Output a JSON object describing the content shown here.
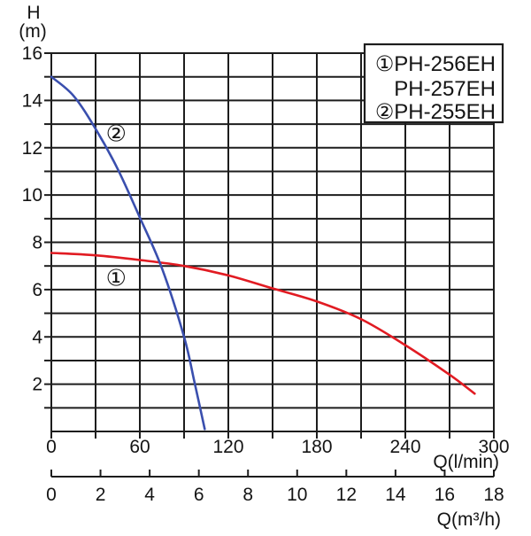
{
  "chart_data": {
    "type": "line",
    "grid": "on",
    "legend_position": "top-right",
    "y_axis": {
      "title_line1": "H",
      "title_line2": "(m)",
      "min": 0,
      "max": 16,
      "grid_step": 1,
      "tick_step": 1,
      "labeled_ticks": [
        2,
        4,
        6,
        8,
        10,
        12,
        14,
        16
      ]
    },
    "x_axis": {
      "label": "Q(l/min)",
      "min": 0,
      "max": 300,
      "grid_step": 30,
      "tick_step": 30,
      "labeled_ticks": [
        0,
        60,
        120,
        180,
        240,
        300
      ]
    },
    "x_axis_secondary": {
      "label": "Q(m³/h)",
      "min": 0,
      "max": 18,
      "tick_step": 2,
      "labeled_ticks": [
        0,
        2,
        4,
        6,
        8,
        10,
        12,
        14,
        16,
        18
      ]
    },
    "series": [
      {
        "name": "PH-256EH / PH-257EH",
        "curve_marker": "①",
        "color": "#e11b22",
        "points": [
          [
            0,
            7.55
          ],
          [
            30,
            7.45
          ],
          [
            60,
            7.25
          ],
          [
            90,
            7.0
          ],
          [
            120,
            6.6
          ],
          [
            150,
            6.05
          ],
          [
            180,
            5.5
          ],
          [
            210,
            4.75
          ],
          [
            240,
            3.65
          ],
          [
            270,
            2.4
          ],
          [
            287,
            1.6
          ]
        ]
      },
      {
        "name": "PH-255EH",
        "curve_marker": "②",
        "color": "#3a4fae",
        "points": [
          [
            0,
            15.0
          ],
          [
            15,
            14.2
          ],
          [
            30,
            12.8
          ],
          [
            45,
            11.1
          ],
          [
            60,
            9.05
          ],
          [
            75,
            6.9
          ],
          [
            90,
            4.0
          ],
          [
            97,
            2.1
          ],
          [
            104,
            0.1
          ]
        ]
      }
    ],
    "curve_labels": [
      {
        "text": "②",
        "q": 44,
        "h": 12.6
      },
      {
        "text": "①",
        "q": 44,
        "h": 6.5
      }
    ]
  },
  "legend": {
    "rows": [
      {
        "marker": "①",
        "label": "PH-256EH"
      },
      {
        "marker": "",
        "label": "PH-257EH"
      },
      {
        "marker": "②",
        "label": "PH-255EH"
      }
    ]
  },
  "colors": {
    "grid": "#1d1d1d",
    "text": "#141414",
    "curve_1": "#e11b22",
    "curve_2": "#3a4fae"
  }
}
